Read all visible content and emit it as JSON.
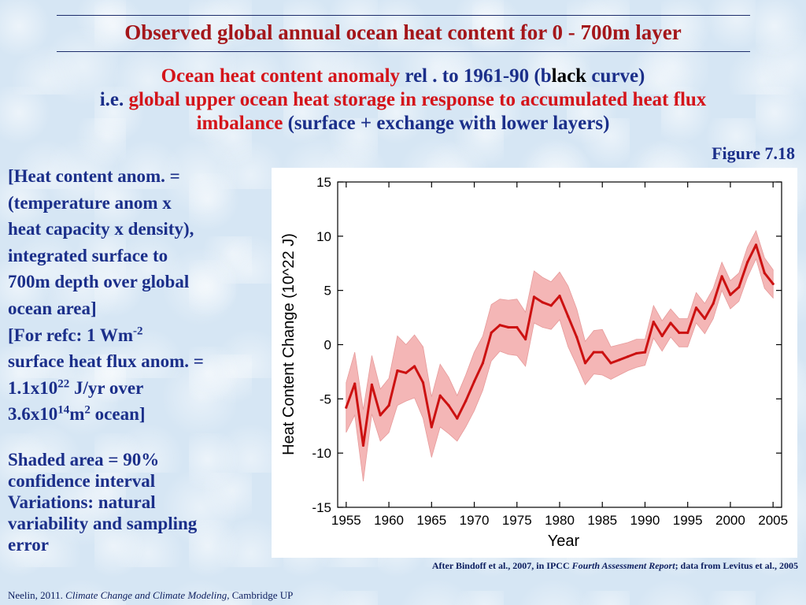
{
  "slide": {
    "title": "Observed global annual ocean heat content for 0 - 700m layer",
    "subtitle": {
      "line1_a": "Ocean heat content anomaly",
      "line1_b": " rel . to  1961-90 (b",
      "line1_c": "lack",
      "line1_d": " curve)",
      "line2_a": "i.e. ",
      "line2_b": "global upper ocean heat storage in response to accumulated heat flux",
      "line3_a": "imbalance",
      "line3_b": " (surface + exchange with lower layers)"
    },
    "figure_label": "Figure 7.18",
    "left_text": {
      "l1": "[Heat content anom. =",
      "l2": "(temperature anom x",
      "l3": "heat capacity x density),",
      "l4": "integrated surface to",
      "l5": "700m depth over global",
      "l6": "ocean area]",
      "l7a": "[For refc: 1 Wm",
      "l7sup": "-2",
      "l8": "surface heat flux anom. =",
      "l9a": "1.1x10",
      "l9sup": "22",
      "l9b": " J/yr over",
      "l10a": "3.6x10",
      "l10sup": "14",
      "l10b": "m",
      "l10sup2": "2",
      "l10c": " ocean]"
    },
    "shaded_note": {
      "l1": "Shaded area = 90%",
      "l2": "confidence interval",
      "l3": "Variations: natural",
      "l4": "variability and sampling",
      "l5": "error"
    },
    "attribution": {
      "a": "After Bindoff et al., 2007, in IPCC ",
      "b": "Fourth Assessment Report",
      "c": "; data from Levitus et al., 2005"
    },
    "footer": {
      "a": "Neelin, 2011. ",
      "b": "Climate Change and Climate Modeling,",
      "c": " Cambridge UP"
    }
  },
  "colors": {
    "title": "#a4161a",
    "emphasis_red": "#d4141a",
    "text_blue": "#1b2f8a",
    "line": "#cc1111",
    "band": "#f4b6b6"
  },
  "chart_data": {
    "type": "line",
    "xlabel": "Year",
    "ylabel": "Heat Content Change (10^22 J)",
    "xlim": [
      1954,
      2006
    ],
    "ylim": [
      -15,
      15
    ],
    "xticks": [
      1955,
      1960,
      1965,
      1970,
      1975,
      1980,
      1985,
      1990,
      1995,
      2000,
      2005
    ],
    "yticks": [
      -15,
      -10,
      -5,
      0,
      5,
      10,
      15
    ],
    "grid": false,
    "x": [
      1955,
      1956,
      1957,
      1958,
      1959,
      1960,
      1961,
      1962,
      1963,
      1964,
      1965,
      1966,
      1967,
      1968,
      1969,
      1970,
      1971,
      1972,
      1973,
      1974,
      1975,
      1976,
      1977,
      1978,
      1979,
      1980,
      1981,
      1982,
      1983,
      1984,
      1985,
      1986,
      1987,
      1988,
      1989,
      1990,
      1991,
      1992,
      1993,
      1994,
      1995,
      1996,
      1997,
      1998,
      1999,
      2000,
      2001,
      2002,
      2003,
      2004,
      2005
    ],
    "series": [
      {
        "values": [
          -5.8,
          -3.6,
          -9.3,
          -3.7,
          -6.5,
          -5.6,
          -2.4,
          -2.6,
          -2.0,
          -3.5,
          -7.6,
          -4.7,
          -5.6,
          -6.8,
          -5.2,
          -3.4,
          -1.7,
          1.1,
          1.8,
          1.6,
          1.6,
          0.5,
          4.4,
          3.9,
          3.6,
          4.5,
          2.6,
          0.7,
          -1.7,
          -0.7,
          -0.7,
          -1.7,
          -1.4,
          -1.1,
          -0.8,
          -0.7,
          2.1,
          0.8,
          2.0,
          1.1,
          1.1,
          3.4,
          2.4,
          3.8,
          6.3,
          4.6,
          5.3,
          7.6,
          9.2,
          6.6,
          5.6
        ],
        "lower": [
          -8.1,
          -6.5,
          -12.6,
          -6.4,
          -8.9,
          -8.1,
          -5.6,
          -5.2,
          -4.9,
          -6.8,
          -10.4,
          -7.6,
          -8.2,
          -8.9,
          -7.6,
          -6.1,
          -4.2,
          -1.5,
          -0.6,
          -0.9,
          -1.0,
          -2.0,
          2.0,
          1.6,
          1.4,
          2.3,
          -0.2,
          -1.9,
          -3.7,
          -2.7,
          -2.8,
          -3.2,
          -2.8,
          -2.4,
          -2.1,
          -1.9,
          0.6,
          -0.6,
          0.7,
          -0.2,
          -0.2,
          2.0,
          1.0,
          2.4,
          5.0,
          3.3,
          4.0,
          6.2,
          7.9,
          5.2,
          4.3
        ],
        "upper": [
          -3.5,
          -0.7,
          -6.0,
          -1.0,
          -4.1,
          -3.1,
          0.8,
          0.0,
          0.9,
          -0.2,
          -4.8,
          -1.8,
          -3.0,
          -4.7,
          -2.8,
          -0.7,
          0.8,
          3.7,
          4.2,
          4.1,
          4.2,
          3.0,
          6.8,
          6.2,
          5.8,
          6.7,
          5.4,
          3.3,
          0.3,
          1.3,
          1.4,
          -0.2,
          0.0,
          0.2,
          0.5,
          0.5,
          3.6,
          2.2,
          3.3,
          2.4,
          2.4,
          4.8,
          3.8,
          5.2,
          7.6,
          5.9,
          6.6,
          9.0,
          10.5,
          8.0,
          6.9
        ]
      }
    ]
  }
}
